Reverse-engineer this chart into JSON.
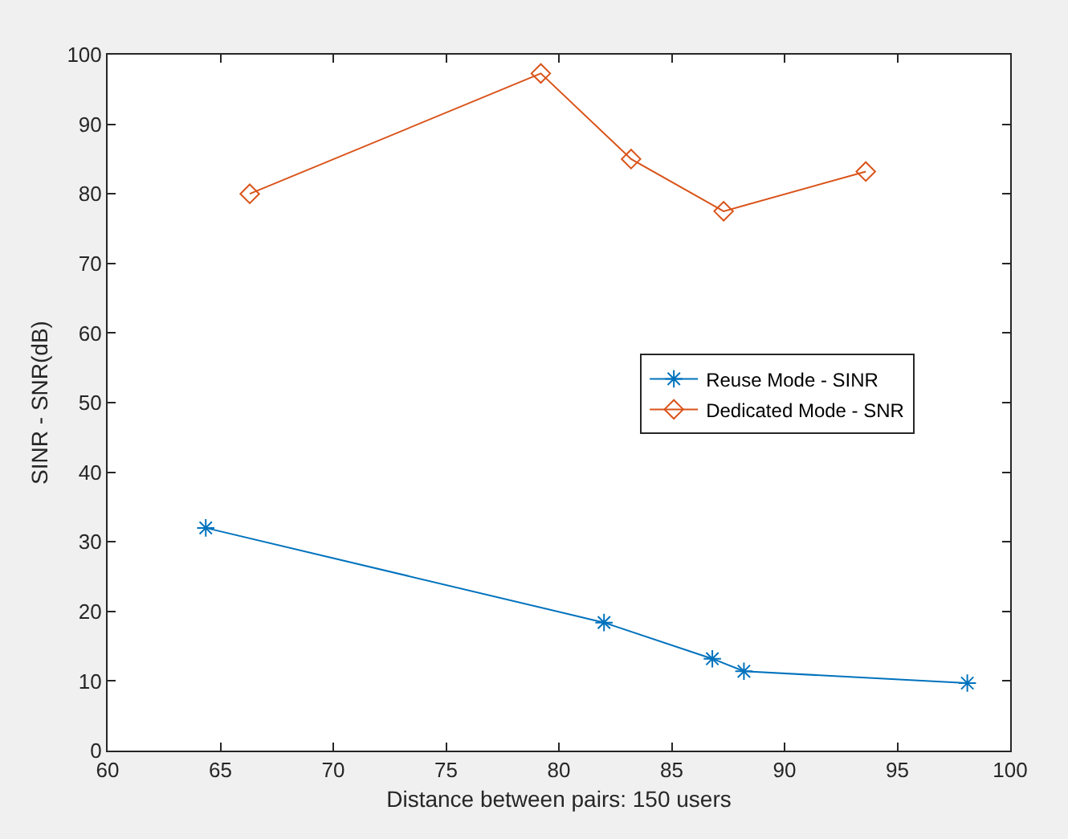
{
  "chart_data": {
    "type": "line",
    "xlabel": "Distance between pairs: 150 users",
    "ylabel": "SINR - SNR(dB)",
    "series": [
      {
        "name": "Reuse Mode - SINR",
        "color": "#0072bd",
        "marker": "cross",
        "x": [
          64.35,
          82.0,
          86.8,
          88.2,
          98.1
        ],
        "values": [
          32.0,
          18.4,
          13.2,
          11.4,
          9.7
        ]
      },
      {
        "name": "Dedicated Mode - SNR",
        "color": "#d95319",
        "marker": "diamond",
        "x": [
          66.3,
          79.2,
          83.2,
          87.3,
          93.6
        ],
        "values": [
          80.0,
          97.3,
          85.0,
          77.5,
          83.2
        ]
      }
    ],
    "xlim": [
      60,
      100
    ],
    "xticks": [
      60,
      65,
      70,
      75,
      80,
      85,
      90,
      95,
      100
    ],
    "ylim": [
      0,
      100
    ],
    "yticks": [
      0,
      10,
      20,
      30,
      40,
      50,
      60,
      70,
      80,
      90,
      100
    ],
    "grid": false,
    "legend": "right",
    "line_style": "solid"
  }
}
